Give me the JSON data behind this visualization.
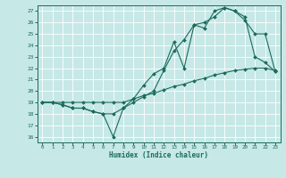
{
  "title": "",
  "xlabel": "Humidex (Indice chaleur)",
  "ylabel": "",
  "bg_color": "#c6e8e6",
  "line_color": "#1a6b5a",
  "grid_color": "#ffffff",
  "xlim": [
    -0.5,
    23.5
  ],
  "ylim": [
    15.5,
    27.5
  ],
  "yticks": [
    16,
    17,
    18,
    19,
    20,
    21,
    22,
    23,
    24,
    25,
    26,
    27
  ],
  "xticks": [
    0,
    1,
    2,
    3,
    4,
    5,
    6,
    7,
    8,
    9,
    10,
    11,
    12,
    13,
    14,
    15,
    16,
    17,
    18,
    19,
    20,
    21,
    22,
    23
  ],
  "line1_x": [
    0,
    1,
    2,
    3,
    4,
    5,
    6,
    7,
    8,
    9,
    10,
    11,
    12,
    13,
    14,
    15,
    16,
    17,
    18,
    19,
    20,
    21,
    22,
    23
  ],
  "line1_y": [
    19,
    19,
    18.8,
    18.5,
    18.5,
    18.2,
    18.0,
    16.0,
    18.5,
    19.3,
    20.5,
    21.5,
    22.0,
    24.3,
    22.0,
    25.8,
    25.5,
    27.0,
    27.3,
    27.0,
    26.2,
    25.0,
    25.0,
    21.7
  ],
  "line2_x": [
    0,
    1,
    2,
    3,
    4,
    5,
    6,
    7,
    8,
    9,
    10,
    11,
    12,
    13,
    14,
    15,
    16,
    17,
    18,
    19,
    20,
    21,
    22,
    23
  ],
  "line2_y": [
    19,
    19,
    18.8,
    18.5,
    18.5,
    18.2,
    18.0,
    18.0,
    18.5,
    19.0,
    19.5,
    20.0,
    21.8,
    23.5,
    24.5,
    25.8,
    26.0,
    26.5,
    27.3,
    27.0,
    26.5,
    23.0,
    22.5,
    21.7
  ],
  "line3_x": [
    0,
    1,
    2,
    3,
    4,
    5,
    6,
    7,
    8,
    9,
    10,
    11,
    12,
    13,
    14,
    15,
    16,
    17,
    18,
    19,
    20,
    21,
    22,
    23
  ],
  "line3_y": [
    19,
    19,
    19,
    19,
    19,
    19,
    19,
    19,
    19,
    19.3,
    19.6,
    19.8,
    20.1,
    20.4,
    20.6,
    20.9,
    21.1,
    21.4,
    21.6,
    21.8,
    21.9,
    22.0,
    22.0,
    21.8
  ]
}
